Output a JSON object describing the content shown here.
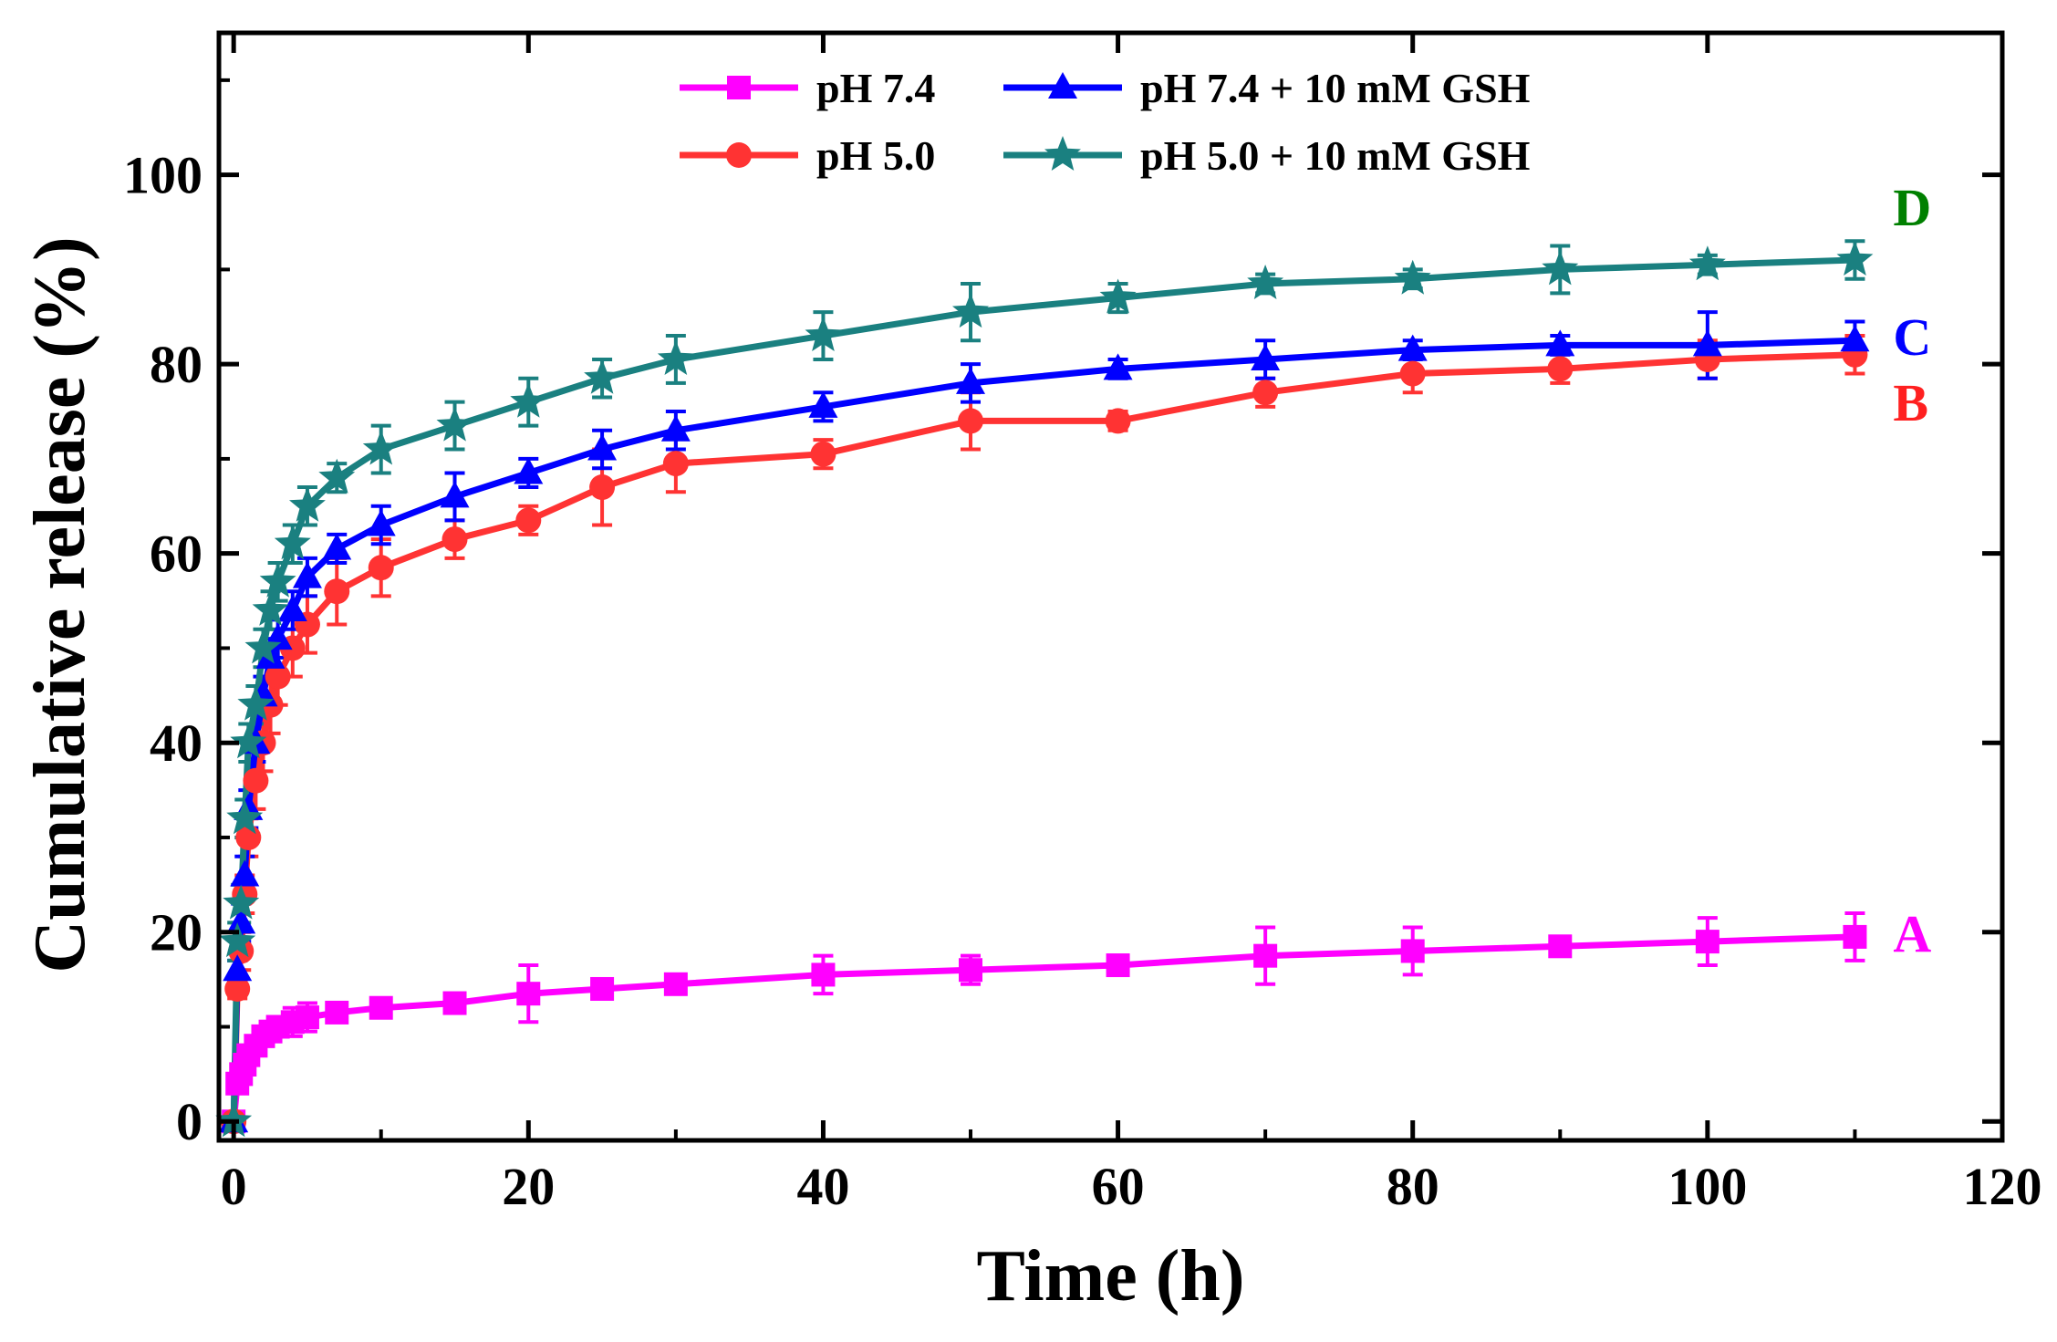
{
  "chart_data": {
    "type": "line",
    "title": "",
    "xlabel": "Time (h)",
    "ylabel": "Cumulative release (%)",
    "xlim": [
      -1,
      120
    ],
    "ylim": [
      -2,
      115
    ],
    "xticks": [
      0,
      20,
      40,
      60,
      80,
      100,
      120
    ],
    "yticks": [
      0,
      20,
      40,
      60,
      80,
      100
    ],
    "xtick_labels": [
      "0",
      "20",
      "40",
      "60",
      "80",
      "100",
      "120"
    ],
    "ytick_labels": [
      "0",
      "20",
      "40",
      "60",
      "80",
      "100"
    ],
    "grid": false,
    "legend_position": "top",
    "x": [
      0,
      0.25,
      0.5,
      0.75,
      1,
      1.5,
      2,
      2.5,
      3,
      4,
      5,
      7,
      10,
      15,
      20,
      25,
      30,
      40,
      50,
      60,
      70,
      80,
      90,
      100,
      110
    ],
    "series": [
      {
        "name": "pH 7.4",
        "label": "A",
        "color": "#ff00ff",
        "marker": "square",
        "values": [
          0,
          4,
          5,
          6,
          7,
          8,
          9,
          9.5,
          10,
          10.5,
          11,
          11.5,
          12,
          12.5,
          13.5,
          14,
          14.5,
          15.5,
          16,
          16.5,
          17.5,
          18,
          18.5,
          19,
          19.5
        ],
        "errors": [
          0,
          1,
          1,
          1,
          1,
          1,
          1,
          1,
          1,
          1.5,
          1.5,
          1,
          1,
          1,
          3,
          1,
          1,
          2,
          1.5,
          1,
          3,
          2.5,
          1,
          2.5,
          2.5
        ]
      },
      {
        "name": "pH 5.0",
        "label": "B",
        "color": "#ff3333",
        "marker": "circle",
        "values": [
          0,
          14,
          18,
          24,
          30,
          36,
          40,
          44,
          47,
          50,
          52.5,
          56,
          58.5,
          61.5,
          63.5,
          67,
          69.5,
          70.5,
          74,
          74,
          77,
          79,
          79.5,
          80.5,
          81
        ],
        "errors": [
          0,
          1,
          2,
          2,
          2,
          3,
          3,
          3,
          3,
          3,
          3,
          3.5,
          3,
          2,
          1.5,
          4,
          3,
          1.5,
          3,
          1,
          1.5,
          2,
          1.5,
          2,
          2
        ]
      },
      {
        "name": "pH 7.4 + 10 mM GSH",
        "label": "C",
        "color": "#0000ff",
        "marker": "triangle",
        "values": [
          0,
          16,
          21,
          26,
          33,
          40,
          45,
          49,
          51,
          54,
          57.5,
          60.5,
          63,
          66,
          68.5,
          71,
          73,
          75.5,
          78,
          79.5,
          80.5,
          81.5,
          82,
          82,
          82.5
        ],
        "errors": [
          0,
          1,
          2,
          2,
          2,
          2,
          2,
          2,
          2,
          2,
          2,
          1.5,
          2,
          2.5,
          1.5,
          2,
          2,
          1.5,
          2,
          1,
          2,
          1,
          1,
          3.5,
          2
        ]
      },
      {
        "name": "pH 5.0 + 10 mM GSH",
        "label": "D",
        "color": "#1a8080",
        "marker": "star",
        "values": [
          0,
          19,
          23,
          32,
          40,
          44,
          50,
          54,
          57,
          61,
          65,
          68,
          71,
          73.5,
          76,
          78.5,
          80.5,
          83,
          85.5,
          87,
          88.5,
          89,
          90,
          90.5,
          91
        ],
        "errors": [
          0,
          2,
          2,
          2,
          2,
          2,
          2,
          2,
          2,
          2,
          2,
          1.5,
          2.5,
          2.5,
          2.5,
          2,
          2.5,
          2.5,
          3,
          1.5,
          1,
          1,
          2.5,
          1,
          2
        ]
      }
    ]
  },
  "curve_label_colors": {
    "A": "#ff00ff",
    "B": "#ff2020",
    "C": "#0000ff",
    "D": "#008000"
  }
}
